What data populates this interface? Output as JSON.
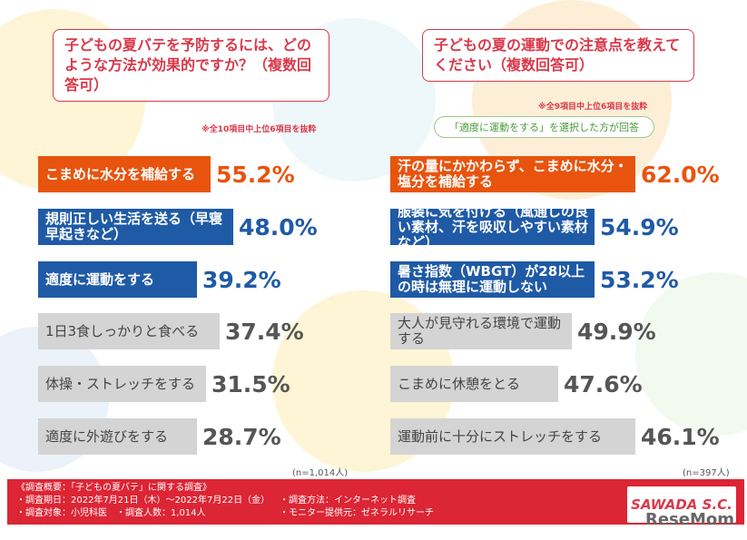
{
  "chart_data": [
    {
      "type": "bar",
      "title": "子どもの夏バテを予防するには、どのような方法が効果的ですか？（複数回答可）",
      "note": "※全10項目中上位6項目を抜粋",
      "sample": "(n=1,014人)",
      "categories": [
        "こまめに水分を補給する",
        "規則正しい生活を送る（早寝早起きなど）",
        "適度に運動をする",
        "1日3食しっかりと食べる",
        "体操・ストレッチをする",
        "適度に外遊びをする"
      ],
      "values": [
        55.2,
        48.0,
        39.2,
        37.4,
        31.5,
        28.7
      ],
      "labels": [
        "55.2%",
        "48.0%",
        "39.2%",
        "37.4%",
        "31.5%",
        "28.7%"
      ]
    },
    {
      "type": "bar",
      "title": "子どもの夏の運動での注意点を教えてください（複数回答可）",
      "note": "※全9項目中上位6項目を抜粋",
      "condition": "「適度に運動をする」を選択した方が回答",
      "sample": "(n=397人)",
      "categories": [
        "汗の量にかかわらず、こまめに水分・塩分を補給する",
        "服装に気を付ける（風通しの良い素材、汗を吸収しやすい素材など）",
        "暑さ指数（WBGT）が28以上の時は無理に運動しない",
        "大人が見守れる環境で運動する",
        "こまめに休憩をとる",
        "運動前に十分にストレッチをする"
      ],
      "values": [
        62.0,
        54.9,
        53.2,
        49.9,
        47.6,
        46.1
      ],
      "labels": [
        "62.0%",
        "54.9%",
        "53.2%",
        "49.9%",
        "47.6%",
        "46.1%"
      ]
    }
  ],
  "colors": {
    "top": "#e8540e",
    "highlight": "#1f5aa6",
    "other": "#d4d4d4",
    "accent": "#d9394a"
  },
  "footer": {
    "lines": [
      "《調査概要：「子どもの夏バテ」に関する調査》",
      "・調査期日：2022年7月21日（木）～2022年7月22日（金）",
      "・調査方法：インターネット調査",
      "・調査対象：小児科医",
      "・調査人数：1,014人",
      "・モニター提供元：ゼネラルリサーチ"
    ],
    "logo": "SAWADA S.C.",
    "watermark": "ReseMom"
  }
}
